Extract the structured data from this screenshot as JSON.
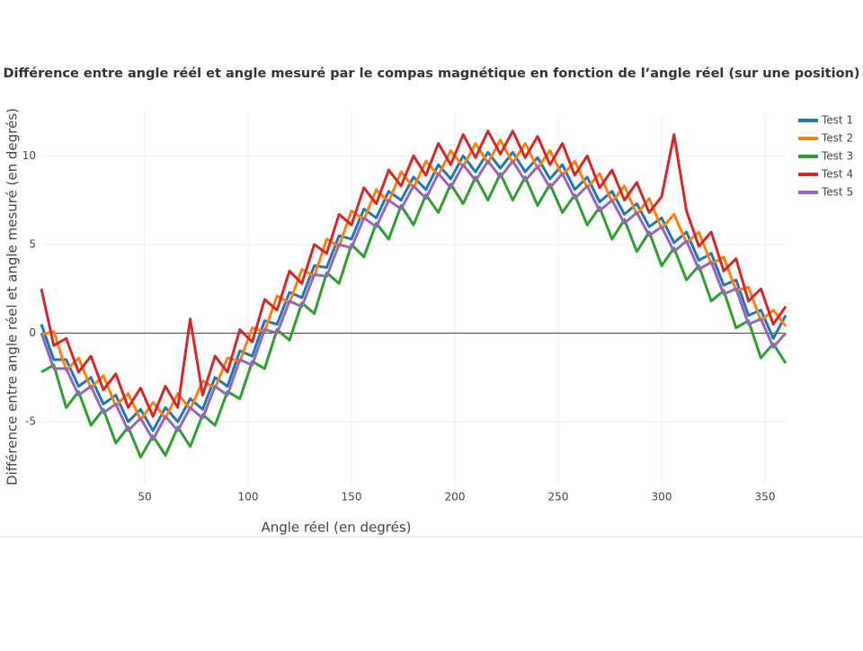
{
  "chart_data": {
    "type": "line",
    "title": "Différence entre angle réél et angle mesuré par le compas magnétique en fonction de l’angle réel (sur une position)",
    "xlabel": "Angle réel (en degrés)",
    "ylabel": "Différence entre angle réel et angle mesuré (en degrés)",
    "x": [
      0,
      6,
      12,
      18,
      24,
      30,
      36,
      42,
      48,
      54,
      60,
      66,
      72,
      78,
      84,
      90,
      96,
      102,
      108,
      114,
      120,
      126,
      132,
      138,
      144,
      150,
      156,
      162,
      168,
      174,
      180,
      186,
      192,
      198,
      204,
      210,
      216,
      222,
      228,
      234,
      240,
      246,
      252,
      258,
      264,
      270,
      276,
      282,
      288,
      294,
      300,
      306,
      312,
      318,
      324,
      330,
      336,
      342,
      348,
      354,
      360
    ],
    "series": [
      {
        "name": "Test 1",
        "color": "#1f77b4",
        "values": [
          0.5,
          -1.5,
          -1.5,
          -3,
          -2.5,
          -4,
          -3.5,
          -5,
          -4.3,
          -5.5,
          -4.2,
          -5,
          -3.7,
          -4.3,
          -2.5,
          -3,
          -1,
          -1.3,
          0.7,
          0.5,
          2.3,
          2,
          3.8,
          3.7,
          5.5,
          5.3,
          7,
          6.5,
          8,
          7.5,
          8.8,
          8.1,
          9.5,
          8.7,
          10,
          9.1,
          10.2,
          9.3,
          10.2,
          9.1,
          9.9,
          8.7,
          9.5,
          8.1,
          8.8,
          7.4,
          8,
          6.7,
          7.3,
          6,
          6.5,
          5.1,
          5.7,
          4.1,
          4.5,
          2.7,
          3,
          1,
          1.3,
          -0.3,
          1
        ]
      },
      {
        "name": "Test 2",
        "color": "#ff7f0e",
        "values": [
          -0.1,
          0.1,
          -2.1,
          -1.4,
          -3.1,
          -2.4,
          -4.1,
          -3.4,
          -4.9,
          -3.9,
          -4.8,
          -3.4,
          -4.3,
          -2.7,
          -3.1,
          -1.4,
          -1.6,
          0.3,
          0.1,
          2.1,
          1.7,
          3.6,
          3.2,
          5.3,
          4.9,
          6.9,
          6.4,
          8.1,
          7.4,
          9.1,
          8.2,
          9.7,
          8.9,
          10.3,
          9.4,
          10.7,
          9.6,
          10.9,
          9.6,
          10.7,
          9.3,
          10.3,
          8.9,
          9.7,
          8.2,
          9,
          7.4,
          8.3,
          6.7,
          7.6,
          5.9,
          6.7,
          5.1,
          5.7,
          3.9,
          4.3,
          2.4,
          2.6,
          0.7,
          1.3,
          0.4
        ]
      },
      {
        "name": "Test 3",
        "color": "#2ca02c",
        "values": [
          -2.2,
          -1.8,
          -4.2,
          -3.3,
          -5.2,
          -4.3,
          -6.2,
          -5.3,
          -7,
          -5.8,
          -6.9,
          -5.3,
          -6.4,
          -4.6,
          -5.2,
          -3.3,
          -3.7,
          -1.6,
          -2,
          0.2,
          -0.4,
          1.7,
          1.1,
          3.4,
          2.8,
          5,
          4.3,
          6.2,
          5.3,
          7.2,
          6.1,
          7.8,
          6.8,
          8.4,
          7.3,
          8.8,
          7.5,
          9,
          7.5,
          8.8,
          7.2,
          8.4,
          6.8,
          7.8,
          6.1,
          7.1,
          5.3,
          6.4,
          4.6,
          5.7,
          3.8,
          4.8,
          3,
          3.8,
          1.8,
          2.4,
          0.3,
          0.7,
          -1.4,
          -0.6,
          -1.7
        ]
      },
      {
        "name": "Test 4",
        "color": "#d62728",
        "values": [
          2.5,
          -0.7,
          -0.3,
          -2.2,
          -1.3,
          -3.2,
          -2.3,
          -4.2,
          -3.1,
          -4.7,
          -3,
          -4.2,
          0.8,
          -3.5,
          -1.3,
          -2.2,
          0.2,
          -0.5,
          1.9,
          1.3,
          3.5,
          2.8,
          5,
          4.5,
          6.7,
          6.1,
          8.2,
          7.3,
          9.2,
          8.3,
          10,
          8.9,
          10.7,
          9.5,
          11.2,
          9.9,
          11.4,
          10.1,
          11.4,
          9.9,
          11.1,
          9.5,
          10.7,
          8.9,
          10,
          8.2,
          9.2,
          7.5,
          8.5,
          6.8,
          7.7,
          11.2,
          6.9,
          4.9,
          5.7,
          3.5,
          4.2,
          1.8,
          2.5,
          0.5,
          1.5
        ]
      },
      {
        "name": "Test 5",
        "color": "#9467bd",
        "values": [
          0,
          -2,
          -2,
          -3.5,
          -3,
          -4.5,
          -4,
          -5.5,
          -4.8,
          -6,
          -4.7,
          -5.5,
          -4.2,
          -4.8,
          -3,
          -3.5,
          -1.5,
          -1.8,
          0.2,
          0,
          1.8,
          1.5,
          3.3,
          3.2,
          5,
          4.8,
          6.5,
          6,
          7.5,
          7,
          8.3,
          7.6,
          9,
          8.2,
          9.5,
          8.6,
          9.7,
          8.8,
          9.7,
          8.6,
          9.4,
          8.2,
          9,
          7.6,
          8.3,
          6.9,
          7.5,
          6.2,
          6.8,
          5.5,
          6,
          4.6,
          5.2,
          3.6,
          4,
          2.2,
          2.5,
          0.5,
          0.8,
          -0.8,
          0
        ]
      }
    ],
    "xlim": [
      0,
      360
    ],
    "xticks": [
      50,
      100,
      150,
      200,
      250,
      300,
      350
    ],
    "ylim": [
      -8.6,
      12.4
    ],
    "yticks": [
      -5,
      0,
      5,
      10
    ],
    "grid": true,
    "legend": "top-right"
  }
}
